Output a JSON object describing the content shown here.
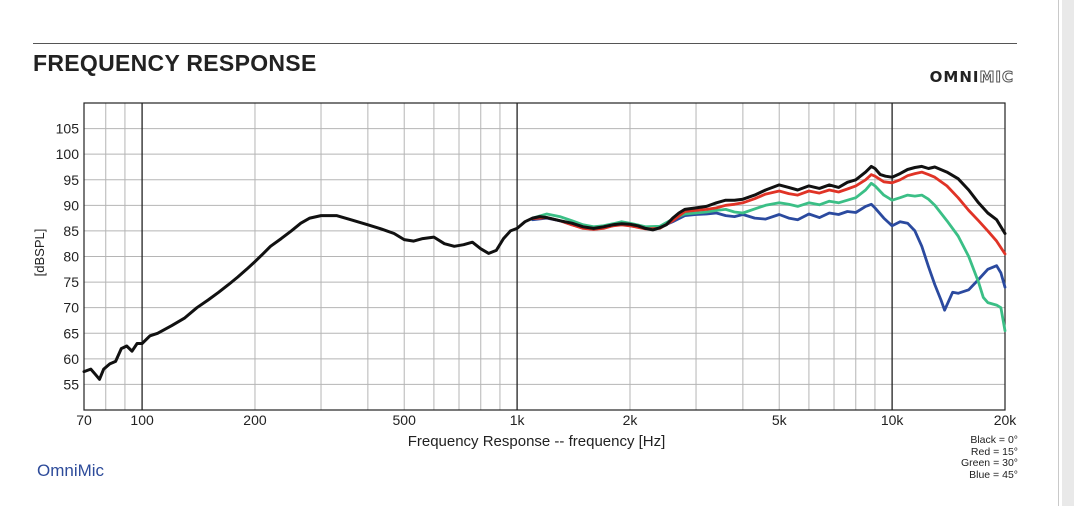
{
  "header": {
    "title": "FREQUENCY RESPONSE",
    "logo_part1": "OMNI",
    "logo_part2": "MIC"
  },
  "footer": {
    "brand": "OmniMic"
  },
  "legend": {
    "items": [
      "Black = 0°",
      "Red = 15°",
      "Green = 30°",
      "Blue = 45°"
    ]
  },
  "chart_data": {
    "type": "line",
    "title": "FREQUENCY RESPONSE",
    "xlabel": "Frequency Response -- frequency [Hz]",
    "ylabel": "[dBSPL]",
    "xscale": "log",
    "xlim": [
      70,
      20000
    ],
    "ylim": [
      50,
      110
    ],
    "grid": true,
    "x_tick_labels": [
      {
        "value": 70,
        "label": "70"
      },
      {
        "value": 100,
        "label": "100"
      },
      {
        "value": 200,
        "label": "200"
      },
      {
        "value": 500,
        "label": "500"
      },
      {
        "value": 1000,
        "label": "1k"
      },
      {
        "value": 2000,
        "label": "2k"
      },
      {
        "value": 5000,
        "label": "5k"
      },
      {
        "value": 10000,
        "label": "10k"
      },
      {
        "value": 20000,
        "label": "20k"
      }
    ],
    "y_tick_labels": [
      55,
      60,
      65,
      70,
      75,
      80,
      85,
      90,
      95,
      100,
      105
    ],
    "series": [
      {
        "name": "Black = 0°",
        "color": "#111111",
        "points": [
          [
            70,
            57.5
          ],
          [
            73,
            58
          ],
          [
            75,
            57
          ],
          [
            77,
            56
          ],
          [
            79,
            58
          ],
          [
            82,
            59
          ],
          [
            85,
            59.5
          ],
          [
            88,
            62
          ],
          [
            91,
            62.5
          ],
          [
            94,
            61.5
          ],
          [
            97,
            63
          ],
          [
            100,
            63
          ],
          [
            105,
            64.5
          ],
          [
            110,
            65
          ],
          [
            120,
            66.5
          ],
          [
            130,
            68
          ],
          [
            140,
            70
          ],
          [
            150,
            71.5
          ],
          [
            160,
            73
          ],
          [
            170,
            74.5
          ],
          [
            180,
            76
          ],
          [
            190,
            77.5
          ],
          [
            200,
            79
          ],
          [
            210,
            80.5
          ],
          [
            220,
            82
          ],
          [
            235,
            83.5
          ],
          [
            250,
            85
          ],
          [
            265,
            86.5
          ],
          [
            280,
            87.5
          ],
          [
            300,
            88
          ],
          [
            330,
            88
          ],
          [
            360,
            87.2
          ],
          [
            400,
            86.2
          ],
          [
            430,
            85.5
          ],
          [
            470,
            84.5
          ],
          [
            500,
            83.3
          ],
          [
            530,
            83
          ],
          [
            560,
            83.5
          ],
          [
            600,
            83.8
          ],
          [
            640,
            82.5
          ],
          [
            680,
            82
          ],
          [
            720,
            82.3
          ],
          [
            760,
            82.8
          ],
          [
            800,
            81.5
          ],
          [
            840,
            80.6
          ],
          [
            880,
            81.2
          ],
          [
            920,
            83.5
          ],
          [
            960,
            85
          ],
          [
            1000,
            85.5
          ],
          [
            1050,
            86.8
          ],
          [
            1100,
            87.5
          ],
          [
            1150,
            87.8
          ],
          [
            1200,
            87.6
          ],
          [
            1300,
            87
          ],
          [
            1400,
            86.5
          ],
          [
            1500,
            85.8
          ],
          [
            1600,
            85.5
          ],
          [
            1700,
            85.8
          ],
          [
            1800,
            86.2
          ],
          [
            1900,
            86.4
          ],
          [
            2000,
            86.3
          ],
          [
            2100,
            86
          ],
          [
            2200,
            85.5
          ],
          [
            2300,
            85.2
          ],
          [
            2400,
            85.6
          ],
          [
            2500,
            86.2
          ],
          [
            2600,
            87.5
          ],
          [
            2700,
            88.5
          ],
          [
            2800,
            89.2
          ],
          [
            3000,
            89.5
          ],
          [
            3200,
            89.8
          ],
          [
            3400,
            90.5
          ],
          [
            3600,
            91
          ],
          [
            3800,
            91
          ],
          [
            4000,
            91.2
          ],
          [
            4300,
            92
          ],
          [
            4600,
            93
          ],
          [
            5000,
            94
          ],
          [
            5300,
            93.5
          ],
          [
            5600,
            93
          ],
          [
            6000,
            93.8
          ],
          [
            6400,
            93.3
          ],
          [
            6800,
            94
          ],
          [
            7200,
            93.5
          ],
          [
            7600,
            94.5
          ],
          [
            8000,
            95
          ],
          [
            8500,
            96.5
          ],
          [
            8800,
            97.6
          ],
          [
            9000,
            97.2
          ],
          [
            9300,
            96
          ],
          [
            9600,
            95.7
          ],
          [
            10000,
            95.5
          ],
          [
            10500,
            96.2
          ],
          [
            11000,
            97
          ],
          [
            11500,
            97.4
          ],
          [
            12000,
            97.6
          ],
          [
            12500,
            97.2
          ],
          [
            13000,
            97.5
          ],
          [
            14000,
            96.5
          ],
          [
            15000,
            95.2
          ],
          [
            16000,
            93
          ],
          [
            17000,
            90.5
          ],
          [
            18000,
            88.5
          ],
          [
            19000,
            87.2
          ],
          [
            20000,
            84.5
          ]
        ]
      },
      {
        "name": "Red = 15°",
        "color": "#e03326",
        "points": [
          [
            1100,
            87.4
          ],
          [
            1200,
            87.6
          ],
          [
            1300,
            87
          ],
          [
            1400,
            86.2
          ],
          [
            1500,
            85.5
          ],
          [
            1600,
            85.3
          ],
          [
            1700,
            85.5
          ],
          [
            1800,
            86
          ],
          [
            1900,
            86.2
          ],
          [
            2000,
            86
          ],
          [
            2200,
            85.4
          ],
          [
            2400,
            85.5
          ],
          [
            2600,
            87
          ],
          [
            2800,
            88.8
          ],
          [
            3000,
            89
          ],
          [
            3200,
            89.2
          ],
          [
            3400,
            89.5
          ],
          [
            3600,
            90
          ],
          [
            3800,
            90.2
          ],
          [
            4000,
            90.5
          ],
          [
            4300,
            91.3
          ],
          [
            4600,
            92.2
          ],
          [
            5000,
            92.8
          ],
          [
            5300,
            92.3
          ],
          [
            5600,
            92
          ],
          [
            6000,
            92.8
          ],
          [
            6400,
            92.4
          ],
          [
            6800,
            93
          ],
          [
            7200,
            92.6
          ],
          [
            7600,
            93.2
          ],
          [
            8000,
            93.8
          ],
          [
            8500,
            95
          ],
          [
            8800,
            96
          ],
          [
            9000,
            95.7
          ],
          [
            9500,
            94.6
          ],
          [
            10000,
            94.4
          ],
          [
            10500,
            95
          ],
          [
            11000,
            95.8
          ],
          [
            11500,
            96.2
          ],
          [
            12000,
            96.5
          ],
          [
            12500,
            96
          ],
          [
            13000,
            95.5
          ],
          [
            14000,
            93.8
          ],
          [
            15000,
            91.5
          ],
          [
            16000,
            89
          ],
          [
            17000,
            87
          ],
          [
            18000,
            85
          ],
          [
            19000,
            83
          ],
          [
            20000,
            80.5
          ]
        ]
      },
      {
        "name": "Green = 30°",
        "color": "#3bbf86",
        "points": [
          [
            1100,
            87.5
          ],
          [
            1200,
            88.3
          ],
          [
            1300,
            87.8
          ],
          [
            1400,
            87
          ],
          [
            1500,
            86.2
          ],
          [
            1600,
            85.8
          ],
          [
            1700,
            86
          ],
          [
            1800,
            86.4
          ],
          [
            1900,
            86.8
          ],
          [
            2000,
            86.5
          ],
          [
            2200,
            85.8
          ],
          [
            2400,
            85.9
          ],
          [
            2600,
            87.3
          ],
          [
            2800,
            88.3
          ],
          [
            3000,
            88.5
          ],
          [
            3200,
            88.7
          ],
          [
            3400,
            89
          ],
          [
            3600,
            89.2
          ],
          [
            3800,
            88.7
          ],
          [
            4000,
            88.5
          ],
          [
            4300,
            89.3
          ],
          [
            4600,
            90
          ],
          [
            5000,
            90.5
          ],
          [
            5300,
            90.2
          ],
          [
            5600,
            89.8
          ],
          [
            6000,
            90.5
          ],
          [
            6400,
            90.1
          ],
          [
            6800,
            90.8
          ],
          [
            7200,
            90.5
          ],
          [
            7600,
            91
          ],
          [
            8000,
            91.5
          ],
          [
            8500,
            93
          ],
          [
            8800,
            94.3
          ],
          [
            9000,
            93.8
          ],
          [
            9500,
            92
          ],
          [
            10000,
            91
          ],
          [
            10500,
            91.5
          ],
          [
            11000,
            92
          ],
          [
            11500,
            91.8
          ],
          [
            12000,
            92
          ],
          [
            12500,
            91.2
          ],
          [
            13000,
            90
          ],
          [
            14000,
            87
          ],
          [
            15000,
            84
          ],
          [
            16000,
            80
          ],
          [
            17000,
            75
          ],
          [
            17500,
            72
          ],
          [
            18000,
            71
          ],
          [
            19000,
            70.5
          ],
          [
            19500,
            70
          ],
          [
            20000,
            65.5
          ]
        ]
      },
      {
        "name": "Blue = 45°",
        "color": "#2b4a9f",
        "points": [
          [
            1100,
            87.2
          ],
          [
            1200,
            87.5
          ],
          [
            1300,
            87
          ],
          [
            1400,
            86.2
          ],
          [
            1500,
            85.6
          ],
          [
            1600,
            85.3
          ],
          [
            1700,
            85.6
          ],
          [
            1800,
            86
          ],
          [
            1900,
            86.3
          ],
          [
            2000,
            86
          ],
          [
            2200,
            85.6
          ],
          [
            2400,
            85.7
          ],
          [
            2600,
            86.8
          ],
          [
            2800,
            88
          ],
          [
            3000,
            88.2
          ],
          [
            3200,
            88.3
          ],
          [
            3400,
            88.5
          ],
          [
            3600,
            88
          ],
          [
            3800,
            87.8
          ],
          [
            4000,
            88.2
          ],
          [
            4300,
            87.5
          ],
          [
            4600,
            87.3
          ],
          [
            5000,
            88.2
          ],
          [
            5300,
            87.5
          ],
          [
            5600,
            87.2
          ],
          [
            6000,
            88.3
          ],
          [
            6400,
            87.6
          ],
          [
            6800,
            88.5
          ],
          [
            7200,
            88.2
          ],
          [
            7600,
            88.8
          ],
          [
            8000,
            88.6
          ],
          [
            8500,
            89.8
          ],
          [
            8800,
            90.2
          ],
          [
            9000,
            89.5
          ],
          [
            9500,
            87.5
          ],
          [
            10000,
            86
          ],
          [
            10500,
            86.8
          ],
          [
            11000,
            86.5
          ],
          [
            11500,
            85
          ],
          [
            12000,
            82
          ],
          [
            12500,
            78
          ],
          [
            13000,
            74.5
          ],
          [
            13500,
            71.5
          ],
          [
            13800,
            69.5
          ],
          [
            14500,
            73
          ],
          [
            15000,
            72.8
          ],
          [
            16000,
            73.5
          ],
          [
            17000,
            75.5
          ],
          [
            18000,
            77.5
          ],
          [
            19000,
            78.2
          ],
          [
            19500,
            76.8
          ],
          [
            20000,
            74
          ]
        ]
      }
    ]
  }
}
